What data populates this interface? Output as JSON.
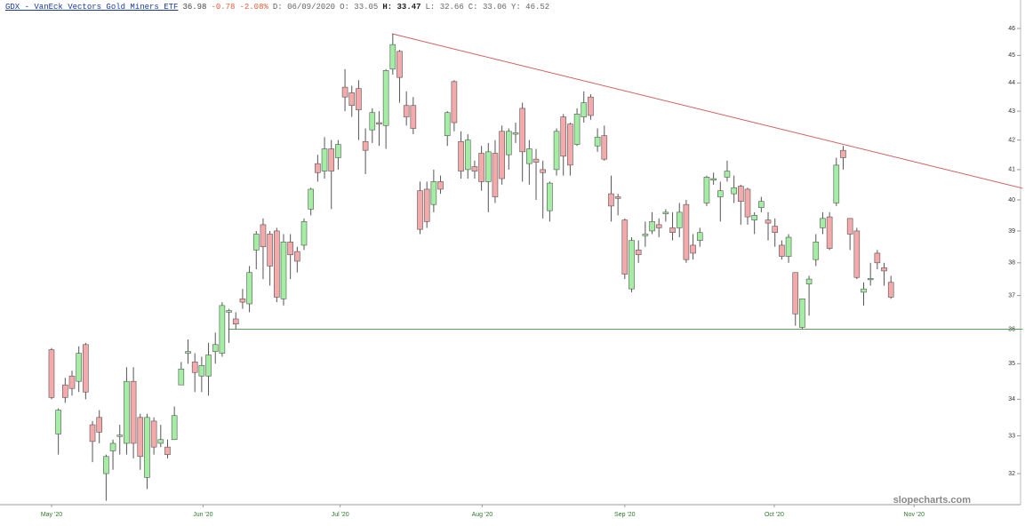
{
  "header": {
    "title": "GDX - VanEck Vectors Gold Miners ETF",
    "items": [
      {
        "text": "36.98",
        "color": "#444444"
      },
      {
        "text": "-0.78",
        "color": "#e0603a"
      },
      {
        "text": "-2.08%",
        "color": "#e0603a"
      },
      {
        "text": "D: 06/09/2020",
        "color": "#666666"
      },
      {
        "text": "O: 33.05",
        "color": "#666666"
      },
      {
        "text": "H: 33.47",
        "color": "#222222",
        "bold": true
      },
      {
        "text": "L: 32.66",
        "color": "#666666"
      },
      {
        "text": "C: 33.06",
        "color": "#666666"
      },
      {
        "text": "Y: 46.52",
        "color": "#666666"
      }
    ]
  },
  "chart_data": {
    "type": "candlestick",
    "watermark": "slopecharts.com",
    "log_y": true,
    "ylim": [
      31.2,
      46.74
    ],
    "yticks": [
      32,
      33,
      34,
      35,
      36,
      37,
      38,
      39,
      40,
      41,
      42,
      43,
      44,
      45,
      46
    ],
    "xlim": [
      -6.9,
      141.6
    ],
    "xticks": [
      {
        "value": 0,
        "label": "May '20"
      },
      {
        "value": 22.2,
        "label": "Jun '20"
      },
      {
        "value": 42.3,
        "label": "Jul '20"
      },
      {
        "value": 63.1,
        "label": "Aug '20"
      },
      {
        "value": 84,
        "label": "Sep '20"
      },
      {
        "value": 105.9,
        "label": "Oct '20"
      },
      {
        "value": 126.4,
        "label": "Nov '20"
      }
    ],
    "up_color": "#a3eea3",
    "down_color": "#f4aaaa",
    "wick_color": "#555555",
    "open": [
      35.4,
      33.05,
      34.4,
      34.65,
      34.5,
      35.55,
      33.3,
      33.5,
      32.0,
      32.6,
      33.0,
      32.8,
      34.5,
      33.5,
      31.9,
      33.4,
      32.8,
      32.7,
      32.9,
      34.4,
      35.3,
      35.05,
      34.65,
      34.65,
      35.35,
      35.3,
      36.5,
      36.3,
      36.9,
      36.75,
      38.4,
      39.2,
      38.9,
      39.0,
      36.9,
      38.65,
      38.35,
      38.55,
      39.7,
      41.2,
      40.95,
      41.7,
      41.4,
      43.85,
      43.65,
      43.8,
      41.95,
      42.35,
      42.6,
      42.5,
      44.5,
      45.15,
      43.2,
      43.2,
      40.3,
      40.35,
      39.85,
      40.6,
      42.15,
      44.05,
      41.95,
      41.0,
      41.1,
      41.55,
      40.6,
      41.55,
      42.3,
      41.5,
      42.2,
      43.1,
      41.2,
      41.35,
      41.0,
      39.65,
      41.0,
      42.8,
      42.55,
      41.85,
      42.8,
      43.5,
      41.8,
      42.15,
      40.2,
      40.1,
      39.35,
      37.2,
      38.4,
      38.85,
      39.0,
      39.2,
      39.55,
      39.1,
      39.1,
      39.85,
      38.55,
      38.7,
      39.9,
      40.65,
      40.1,
      40.75,
      40.2,
      40.45,
      40.35,
      39.35,
      39.75,
      39.35,
      39.15,
      38.55,
      38.2,
      37.7,
      36.05,
      37.35,
      38.1,
      39.1,
      39.45,
      39.9,
      41.65,
      39.4,
      39.0,
      37.1,
      37.5,
      38.3,
      37.85,
      37.4
    ],
    "high": [
      35.45,
      33.75,
      34.6,
      34.8,
      35.5,
      35.6,
      33.4,
      33.7,
      32.5,
      32.9,
      33.3,
      34.9,
      34.9,
      33.6,
      33.6,
      33.5,
      33.3,
      32.9,
      33.8,
      35.05,
      35.7,
      35.3,
      35.2,
      35.6,
      35.9,
      36.8,
      36.6,
      36.5,
      37.2,
      37.9,
      39.0,
      39.4,
      39.0,
      39.1,
      38.9,
      38.9,
      38.5,
      39.4,
      40.4,
      41.5,
      42.1,
      42.0,
      42.0,
      44.5,
      43.9,
      44.1,
      42.4,
      43.1,
      43.0,
      44.5,
      45.8,
      45.2,
      43.7,
      43.5,
      40.6,
      40.6,
      41.0,
      40.8,
      43.0,
      44.1,
      42.3,
      42.2,
      41.3,
      41.8,
      41.9,
      42.0,
      42.5,
      42.4,
      42.6,
      43.3,
      42.0,
      41.7,
      41.3,
      40.6,
      42.4,
      42.9,
      42.6,
      43.1,
      43.7,
      43.6,
      42.4,
      42.5,
      40.8,
      40.2,
      39.4,
      38.8,
      38.7,
      39.3,
      39.6,
      39.4,
      39.7,
      39.6,
      39.9,
      40.0,
      38.9,
      39.1,
      40.8,
      40.9,
      40.6,
      41.3,
      40.8,
      40.5,
      40.4,
      39.6,
      40.1,
      39.6,
      39.4,
      38.7,
      38.9,
      37.7,
      36.9,
      37.6,
      38.9,
      39.6,
      39.6,
      41.4,
      41.8,
      39.4,
      39.1,
      37.4,
      38.0,
      38.4,
      38.0,
      37.6
    ],
    "low": [
      34.0,
      32.5,
      33.9,
      34.1,
      34.2,
      34.0,
      32.3,
      32.8,
      31.3,
      32.1,
      32.5,
      32.5,
      32.4,
      32.1,
      31.6,
      32.5,
      32.7,
      32.4,
      32.9,
      34.4,
      35.0,
      34.2,
      34.2,
      34.1,
      35.0,
      35.2,
      35.6,
      36.0,
      36.6,
      36.5,
      37.8,
      37.5,
      37.3,
      36.8,
      36.7,
      37.5,
      37.7,
      38.4,
      39.5,
      40.6,
      40.7,
      39.7,
      41.0,
      43.0,
      42.8,
      42.0,
      40.85,
      41.9,
      41.8,
      41.7,
      44.3,
      43.3,
      42.5,
      42.2,
      38.9,
      39.1,
      39.6,
      40.2,
      41.8,
      42.3,
      40.7,
      40.7,
      40.7,
      40.3,
      39.6,
      39.9,
      40.5,
      41.0,
      41.9,
      40.6,
      40.5,
      40.0,
      39.4,
      39.3,
      40.8,
      40.8,
      40.8,
      41.8,
      42.6,
      42.7,
      41.6,
      41.3,
      39.3,
      39.5,
      37.5,
      37.1,
      38.0,
      38.5,
      38.9,
      38.8,
      39.3,
      38.7,
      38.8,
      38.0,
      38.1,
      38.5,
      39.8,
      40.5,
      39.3,
      40.6,
      39.9,
      39.2,
      39.2,
      38.9,
      39.6,
      38.7,
      38.5,
      38.1,
      38.0,
      36.1,
      36.0,
      36.4,
      37.9,
      38.9,
      38.4,
      39.8,
      41.0,
      38.4,
      37.5,
      36.7,
      37.3,
      37.8,
      37.3,
      36.9
    ],
    "close": [
      34.05,
      33.7,
      34.05,
      34.3,
      35.3,
      34.2,
      32.85,
      33.1,
      32.45,
      32.8,
      33.02,
      34.5,
      32.8,
      32.45,
      33.5,
      32.7,
      32.9,
      32.5,
      33.55,
      34.85,
      35.35,
      34.75,
      34.95,
      35.25,
      35.55,
      36.7,
      36.55,
      36.15,
      36.8,
      37.7,
      38.9,
      38.5,
      37.9,
      36.95,
      38.65,
      38.25,
      38.05,
      39.3,
      40.35,
      40.9,
      41.7,
      40.95,
      41.85,
      43.5,
      43.2,
      43.05,
      41.65,
      42.95,
      42.55,
      44.45,
      45.4,
      44.2,
      42.8,
      42.4,
      39.05,
      39.3,
      40.6,
      40.35,
      42.95,
      42.6,
      40.95,
      42.0,
      40.95,
      40.6,
      41.6,
      40.1,
      40.7,
      42.3,
      42.25,
      41.6,
      41.7,
      41.25,
      40.9,
      40.55,
      42.3,
      41.45,
      41.15,
      42.9,
      43.3,
      42.85,
      42.1,
      41.35,
      39.8,
      40.05,
      37.65,
      38.7,
      38.25,
      38.9,
      39.3,
      39.1,
      39.6,
      38.95,
      39.6,
      38.1,
      38.3,
      38.95,
      40.75,
      40.7,
      40.3,
      40.95,
      40.4,
      39.95,
      39.45,
      39.5,
      39.95,
      39.25,
      38.95,
      38.2,
      38.8,
      36.45,
      36.9,
      37.5,
      38.65,
      39.4,
      38.45,
      41.15,
      41.4,
      38.9,
      37.55,
      37.2,
      37.52,
      38.0,
      37.75,
      36.95
    ],
    "lines": [
      {
        "x": [
          49.9,
          142.3
        ],
        "y": [
          45.8,
          40.38
        ],
        "color": "#d06060"
      },
      {
        "x": [
          26,
          142.3
        ],
        "y": [
          36,
          36
        ],
        "color": "#5aa05a"
      }
    ]
  }
}
